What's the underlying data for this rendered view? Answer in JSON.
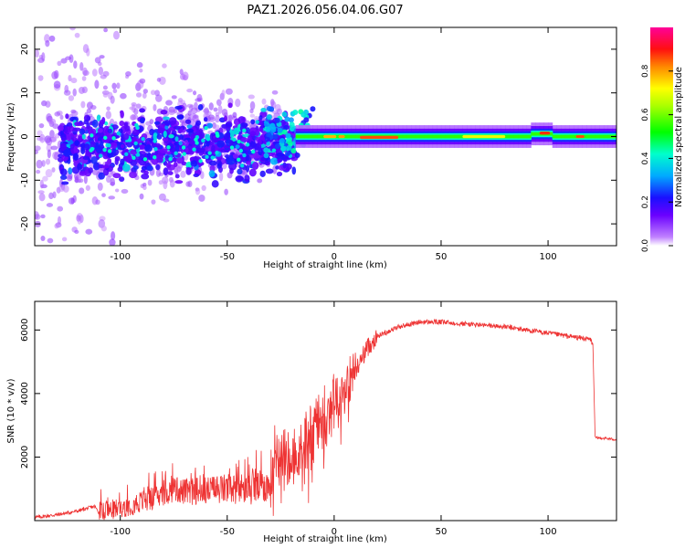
{
  "figure": {
    "title": "PAZ1.2026.056.04.06.G07"
  },
  "chart_data": [
    {
      "type": "heatmap",
      "title": "PAZ1.2026.056.04.06.G07",
      "xlabel": "Height of straight line (km)",
      "ylabel": "Frequency (Hz)",
      "xlim": [
        -140,
        132
      ],
      "ylim": [
        -25,
        25
      ],
      "xticks": [
        -100,
        -50,
        0,
        50,
        100
      ],
      "yticks": [
        -20,
        -10,
        0,
        10,
        20
      ],
      "colorbar": {
        "label": "Normalized spectral amplitude",
        "range": [
          0,
          1
        ],
        "ticks": [
          0.0,
          0.2,
          0.4,
          0.6,
          0.8
        ],
        "colormap": [
          "#ffffff",
          "#7a00ff",
          "#1a00ff",
          "#00aaff",
          "#00ffcc",
          "#00ff00",
          "#aaff00",
          "#ffff00",
          "#ff8800",
          "#ff0000",
          "#ff00aa"
        ]
      },
      "description_points": {
        "center_line_frequency_hz": 0,
        "scatter_region_km": [
          -140,
          -20
        ],
        "tone_region_km": [
          -20,
          132
        ],
        "peak_amplitude_locations_km": [
          0,
          20,
          97
        ]
      }
    },
    {
      "type": "line",
      "xlabel": "Height of straight line (km)",
      "ylabel": "SNR (10 * v/v)",
      "xlim": [
        -140,
        132
      ],
      "ylim": [
        0,
        6900
      ],
      "xticks": [
        -100,
        -50,
        0,
        50,
        100
      ],
      "yticks": [
        2000,
        4000,
        6000
      ],
      "series": [
        {
          "name": "SNR",
          "color": "#ee3333",
          "x": [
            -140,
            -130,
            -120,
            -112,
            -110,
            -100,
            -90,
            -80,
            -75,
            -70,
            -60,
            -50,
            -40,
            -30,
            -28,
            -25,
            -20,
            -15,
            -10,
            -5,
            0,
            5,
            10,
            15,
            20,
            30,
            40,
            50,
            60,
            70,
            80,
            90,
            100,
            110,
            120,
            121,
            122,
            125,
            132
          ],
          "y": [
            100,
            180,
            300,
            450,
            250,
            400,
            600,
            800,
            1000,
            900,
            950,
            1000,
            1000,
            1100,
            2200,
            2100,
            1900,
            2400,
            3000,
            3500,
            3900,
            4200,
            4700,
            5400,
            5800,
            6100,
            6250,
            6250,
            6200,
            6150,
            6100,
            6000,
            5900,
            5800,
            5700,
            5500,
            2600,
            2600,
            2550
          ]
        }
      ]
    }
  ],
  "colors": {
    "axis": "#000000",
    "background": "#ffffff"
  }
}
